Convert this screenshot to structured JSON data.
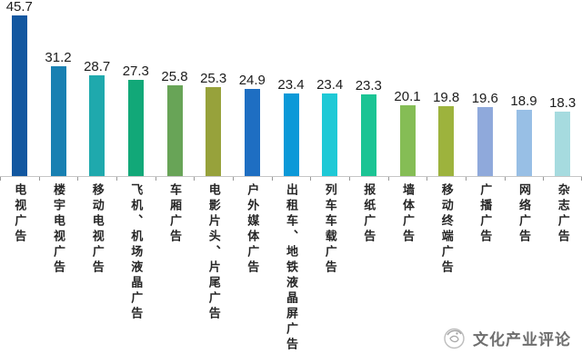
{
  "chart_data": {
    "type": "bar",
    "title": "",
    "xlabel": "",
    "ylabel": "",
    "categories": [
      "电视广告",
      "楼宇电视广告",
      "移动电视广告",
      "飞机、机场液晶广告",
      "车厢广告",
      "电影片头、片尾广告",
      "户外媒体广告",
      "出租车、地铁液晶屏广告",
      "列车车载广告",
      "报纸广告",
      "墙体广告",
      "移动终端广告",
      "广播广告",
      "网络广告",
      "杂志广告"
    ],
    "values": [
      45.7,
      31.2,
      28.7,
      27.3,
      25.8,
      25.3,
      24.9,
      23.4,
      23.4,
      23.3,
      20.1,
      19.8,
      19.6,
      18.9,
      18.3
    ],
    "bar_colors": [
      "#1257a0",
      "#1880b2",
      "#1fa9ad",
      "#12a878",
      "#68a457",
      "#97a23b",
      "#1e6ec2",
      "#0b99d8",
      "#1ec9d6",
      "#1bc494",
      "#85bd55",
      "#9db33d",
      "#8fa9db",
      "#98bfe5",
      "#a6dbdf"
    ],
    "ylim": [
      0,
      46
    ],
    "grid": false,
    "legend": "none",
    "value_labels": "above-bars",
    "category_label_orientation": "vertical"
  },
  "axis": {
    "line_color": "#c6c6c6",
    "tick_color": "#999999"
  },
  "watermark": {
    "icon": "swirl-logo-icon",
    "text": "文化产业评论",
    "color": "#6e6e6e"
  }
}
